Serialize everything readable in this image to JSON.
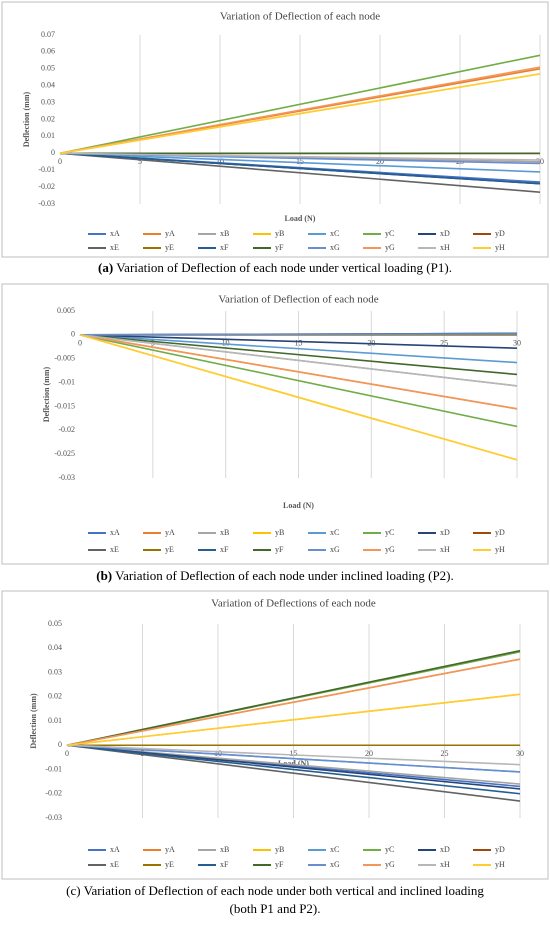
{
  "chart_data": [
    {
      "type": "line",
      "title": "Variation of Deflection of each node",
      "ylabel": "Deflection (mm)",
      "xlabel": "Load (N)",
      "caption_label": "(a)",
      "caption": [
        "Variation of Deflection of each node under vertical loading (P1)."
      ],
      "x": [
        0,
        30
      ],
      "xlim": [
        0,
        30
      ],
      "xticks": [
        0,
        5,
        10,
        15,
        20,
        25,
        30
      ],
      "ylim": [
        -0.03,
        0.07
      ],
      "yticks": [
        -0.03,
        -0.02,
        -0.01,
        0,
        0.01,
        0.02,
        0.03,
        0.04,
        0.05,
        0.06,
        0.07
      ],
      "grid": "x",
      "series": [
        {
          "name": "xA",
          "color": "#4472c4",
          "values": [
            0,
            -0.017
          ]
        },
        {
          "name": "yA",
          "color": "#ed7d31",
          "values": [
            0,
            0.05
          ]
        },
        {
          "name": "xB",
          "color": "#a5a5a5",
          "values": [
            0,
            -0.005
          ]
        },
        {
          "name": "yB",
          "color": "#ffc000",
          "values": [
            0,
            0.047
          ]
        },
        {
          "name": "xC",
          "color": "#5b9bd5",
          "values": [
            0,
            -0.011
          ]
        },
        {
          "name": "yC",
          "color": "#70ad47",
          "values": [
            0,
            0.058
          ]
        },
        {
          "name": "xD",
          "color": "#264478",
          "values": [
            0,
            -0.018
          ]
        },
        {
          "name": "yD",
          "color": "#9e480e",
          "values": [
            0,
            0
          ]
        },
        {
          "name": "xE",
          "color": "#636363",
          "values": [
            0,
            -0.023
          ]
        },
        {
          "name": "yE",
          "color": "#997300",
          "values": [
            0,
            0
          ]
        },
        {
          "name": "xF",
          "color": "#255e91",
          "values": [
            0,
            -0.018
          ]
        },
        {
          "name": "yF",
          "color": "#43682b",
          "values": [
            0,
            0
          ]
        },
        {
          "name": "xG",
          "color": "#698ed0",
          "values": [
            0,
            -0.006
          ]
        },
        {
          "name": "yG",
          "color": "#f1975a",
          "values": [
            0,
            0.051
          ]
        },
        {
          "name": "xH",
          "color": "#b7b7b7",
          "values": [
            0,
            -0.004
          ]
        },
        {
          "name": "yH",
          "color": "#ffcd33",
          "values": [
            0,
            0.047
          ]
        }
      ]
    },
    {
      "type": "line",
      "title": "Variation of Deflection of each node",
      "ylabel": "Deflection (mm)",
      "xlabel": "Load (N)",
      "caption_label": "(b)",
      "caption": [
        "Variation of Deflection of each node under inclined loading (P2)."
      ],
      "x": [
        0,
        30
      ],
      "xlim": [
        0,
        30
      ],
      "xticks": [
        0,
        5,
        10,
        15,
        20,
        25,
        30
      ],
      "ylim": [
        -0.03,
        0.005
      ],
      "yticks": [
        -0.03,
        -0.025,
        -0.02,
        -0.015,
        -0.01,
        -0.005,
        0,
        0.005
      ],
      "grid": "x",
      "series": [
        {
          "name": "xA",
          "color": "#4472c4",
          "values": [
            0,
            0.0003
          ]
        },
        {
          "name": "yA",
          "color": "#ed7d31",
          "values": [
            0,
            -0.0155
          ]
        },
        {
          "name": "xB",
          "color": "#a5a5a5",
          "values": [
            0,
            -0.0107
          ]
        },
        {
          "name": "yB",
          "color": "#ffc000",
          "values": [
            0,
            -0.0262
          ]
        },
        {
          "name": "xC",
          "color": "#5b9bd5",
          "values": [
            0,
            -0.0058
          ]
        },
        {
          "name": "yC",
          "color": "#70ad47",
          "values": [
            0,
            -0.0192
          ]
        },
        {
          "name": "xD",
          "color": "#264478",
          "values": [
            0,
            -0.0028
          ]
        },
        {
          "name": "yD",
          "color": "#9e480e",
          "values": [
            0,
            0
          ]
        },
        {
          "name": "xE",
          "color": "#636363",
          "values": [
            0,
            0.0001
          ]
        },
        {
          "name": "yE",
          "color": "#997300",
          "values": [
            0,
            0
          ]
        },
        {
          "name": "xF",
          "color": "#255e91",
          "values": [
            0,
            0.0003
          ]
        },
        {
          "name": "yF",
          "color": "#43682b",
          "values": [
            0,
            -0.0083
          ]
        },
        {
          "name": "xG",
          "color": "#698ed0",
          "values": [
            0,
            0.0002
          ]
        },
        {
          "name": "yG",
          "color": "#f1975a",
          "values": [
            0,
            -0.0155
          ]
        },
        {
          "name": "xH",
          "color": "#b7b7b7",
          "values": [
            0,
            -0.0107
          ]
        },
        {
          "name": "yH",
          "color": "#ffcd33",
          "values": [
            0,
            -0.0262
          ]
        }
      ]
    },
    {
      "type": "line",
      "title": "Variation of Deflections of each node",
      "ylabel": "Deflection (mm)",
      "xlabel": "Load (N)",
      "caption_label": "(c)",
      "caption": [
        "Variation of Deflection of each node under both vertical and inclined loading",
        "(both P1 and P2)."
      ],
      "x": [
        0,
        30
      ],
      "xlim": [
        0,
        30
      ],
      "xticks": [
        0,
        5,
        10,
        15,
        20,
        25,
        30
      ],
      "ylim": [
        -0.03,
        0.05
      ],
      "yticks": [
        -0.03,
        -0.02,
        -0.01,
        0,
        0.01,
        0.02,
        0.03,
        0.04,
        0.05
      ],
      "grid": "x",
      "series": [
        {
          "name": "xA",
          "color": "#4472c4",
          "values": [
            0,
            -0.017
          ]
        },
        {
          "name": "yA",
          "color": "#ed7d31",
          "values": [
            0,
            0.0355
          ]
        },
        {
          "name": "xB",
          "color": "#a5a5a5",
          "values": [
            0,
            -0.016
          ]
        },
        {
          "name": "yB",
          "color": "#ffc000",
          "values": [
            0,
            0.021
          ]
        },
        {
          "name": "xC",
          "color": "#5b9bd5",
          "values": [
            0,
            -0.011
          ]
        },
        {
          "name": "yC",
          "color": "#70ad47",
          "values": [
            0,
            0.0385
          ]
        },
        {
          "name": "xD",
          "color": "#264478",
          "values": [
            0,
            -0.018
          ]
        },
        {
          "name": "yD",
          "color": "#9e480e",
          "values": [
            0,
            0
          ]
        },
        {
          "name": "xE",
          "color": "#636363",
          "values": [
            0,
            -0.023
          ]
        },
        {
          "name": "yE",
          "color": "#997300",
          "values": [
            0,
            0
          ]
        },
        {
          "name": "xF",
          "color": "#255e91",
          "values": [
            0,
            -0.02
          ]
        },
        {
          "name": "yF",
          "color": "#43682b",
          "values": [
            0,
            0.039
          ]
        },
        {
          "name": "xG",
          "color": "#698ed0",
          "values": [
            0,
            -0.011
          ]
        },
        {
          "name": "yG",
          "color": "#f1975a",
          "values": [
            0,
            0.0355
          ]
        },
        {
          "name": "xH",
          "color": "#b7b7b7",
          "values": [
            0,
            -0.008
          ]
        },
        {
          "name": "yH",
          "color": "#ffcd33",
          "values": [
            0,
            0.021
          ]
        }
      ]
    }
  ]
}
